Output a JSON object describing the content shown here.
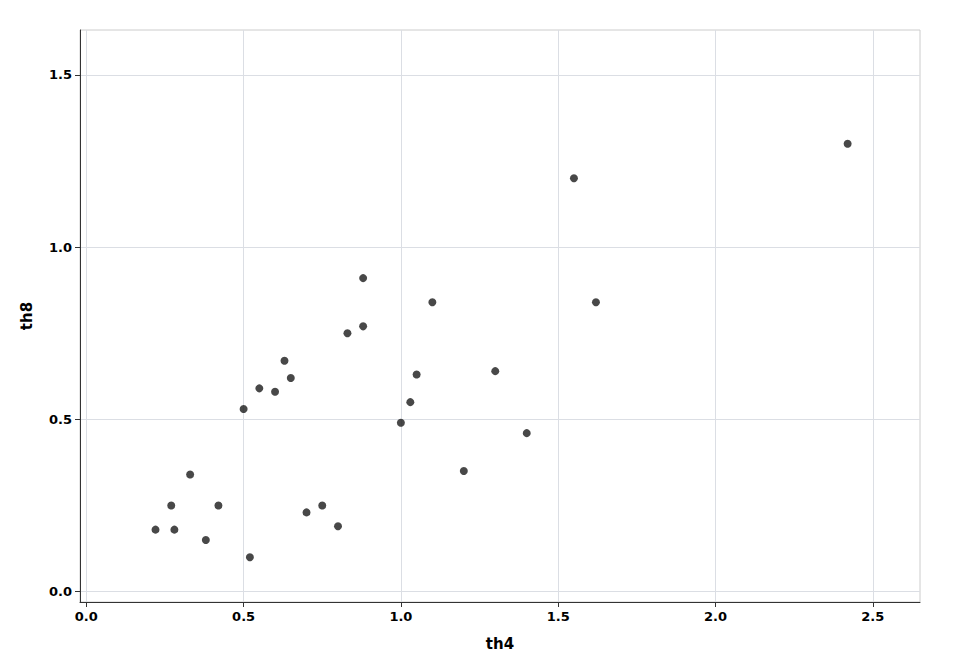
{
  "chart_data": {
    "type": "scatter",
    "x": [
      0.22,
      0.27,
      0.28,
      0.33,
      0.38,
      0.42,
      0.5,
      0.52,
      0.55,
      0.6,
      0.63,
      0.65,
      0.7,
      0.75,
      0.8,
      0.83,
      0.88,
      0.88,
      1.0,
      1.03,
      1.05,
      1.1,
      1.2,
      1.3,
      1.4,
      1.55,
      1.62,
      2.42
    ],
    "y": [
      0.18,
      0.25,
      0.18,
      0.34,
      0.15,
      0.25,
      0.53,
      0.1,
      0.59,
      0.58,
      0.67,
      0.62,
      0.23,
      0.25,
      0.19,
      0.75,
      0.77,
      0.91,
      0.49,
      0.55,
      0.63,
      0.84,
      0.35,
      0.64,
      0.46,
      1.2,
      0.84,
      1.3
    ],
    "xlabel": "th4",
    "ylabel": "th8",
    "xlim": [
      -0.02,
      2.65
    ],
    "ylim": [
      -0.03,
      1.63
    ],
    "xticks": [
      {
        "value": 0.0,
        "label": "0.0"
      },
      0.5,
      {
        "value": 1.0,
        "label": "1.0"
      },
      1.5,
      {
        "value": 2.0,
        "label": "2.0"
      },
      2.5
    ],
    "yticks": [
      {
        "value": 0.0,
        "label": "0.0"
      },
      0.5,
      {
        "value": 1.0,
        "label": "1.0"
      },
      1.5
    ],
    "color": "#1a1a1a",
    "grid": true
  }
}
